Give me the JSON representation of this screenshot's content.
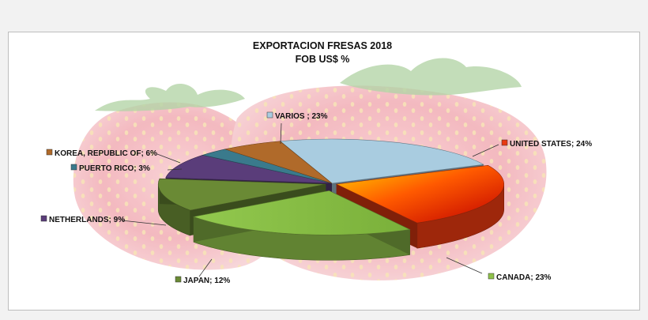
{
  "chart_data": {
    "type": "pie",
    "title": "EXPORTACION  FRESAS  2018",
    "subtitle": "FOB US$ %",
    "slices": [
      {
        "label": "VARIOS",
        "value": 23,
        "display": "VARIOS ; 23%",
        "color": "#a9cce0"
      },
      {
        "label": "UNITED STATES",
        "value": 24,
        "display": "UNITED STATES; 24%",
        "color": "#e83a10"
      },
      {
        "label": "CANADA",
        "value": 23,
        "display": "CANADA; 23%",
        "color": "#8fc14a"
      },
      {
        "label": "JAPAN",
        "value": 12,
        "display": "JAPAN; 12%",
        "color": "#6a8a35"
      },
      {
        "label": "NETHERLANDS",
        "value": 9,
        "display": "NETHERLANDS; 9%",
        "color": "#5a3d7a"
      },
      {
        "label": "PUERTO RICO",
        "value": 3,
        "display": "PUERTO RICO; 3%",
        "color": "#3a7a8c"
      },
      {
        "label": "KOREA, REPUBLIC OF",
        "value": 6,
        "display": "KOREA, REPUBLIC OF; 6%",
        "color": "#b06a2a"
      }
    ],
    "legend": "none"
  }
}
